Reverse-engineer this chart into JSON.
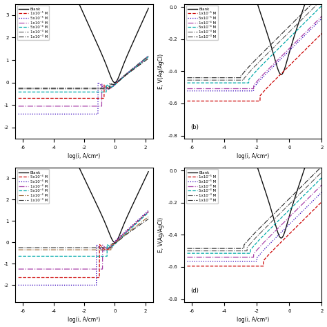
{
  "figsize": [
    4.74,
    4.74
  ],
  "dpi": 100,
  "panels": [
    {
      "idx": 0,
      "label": "",
      "ylabel": "",
      "xlabel": "log(i, A/cm²)",
      "xlim": [
        -6.5,
        2.5
      ],
      "ylim": null,
      "has_ylabel": false,
      "xticks": [
        -6,
        -4,
        -2,
        0,
        2
      ],
      "legend_loc": "upper left",
      "legend": [
        {
          "label": "Blank",
          "color": "#111111",
          "ls": "-",
          "lw": 1.0
        },
        {
          "label": "1x10⁻⁵ M",
          "color": "#cc0000",
          "ls": "--",
          "lw": 0.9
        },
        {
          "label": "5x10⁻⁵ M",
          "color": "#3300bb",
          "ls": ":",
          "lw": 0.9
        },
        {
          "label": "1x10⁻⁴ M",
          "color": "#aa44aa",
          "ls": "-.",
          "lw": 0.9
        },
        {
          "label": "5x10⁻⁴ M",
          "color": "#00aaaa",
          "ls": "--",
          "lw": 0.9
        },
        {
          "label": "1x10⁻³ M",
          "color": "#555555",
          "ls": "-.",
          "lw": 0.8
        },
        {
          "label": "1x10⁻³ M",
          "color": "#222222",
          "ls": "-.",
          "lw": 0.8
        }
      ]
    },
    {
      "idx": 1,
      "label": "(b)",
      "ylabel": "E, V(Ag/AgCl)",
      "xlabel": "log(i, A/cm²)",
      "xlim": [
        -6.5,
        2.0
      ],
      "ylim": [
        -0.82,
        0.02
      ],
      "has_ylabel": true,
      "xticks": [
        -6,
        -4,
        -2,
        0,
        2
      ],
      "yticks": [
        0.0,
        -0.2,
        -0.4,
        -0.6,
        -0.8
      ],
      "legend_loc": "upper left",
      "legend": [
        {
          "label": "Blank",
          "color": "#111111",
          "ls": "-",
          "lw": 1.0
        },
        {
          "label": "1x10⁻⁵ M",
          "color": "#cc0000",
          "ls": "--",
          "lw": 0.9
        },
        {
          "label": "5x10⁻⁵ M",
          "color": "#3300bb",
          "ls": ":",
          "lw": 0.9
        },
        {
          "label": "1x10⁻⁴ M",
          "color": "#aa44aa",
          "ls": "-.",
          "lw": 0.9
        },
        {
          "label": "5x10⁻⁴ M",
          "color": "#00aaaa",
          "ls": "--",
          "lw": 0.9
        },
        {
          "label": "1x10⁻³ M",
          "color": "#555555",
          "ls": "-.",
          "lw": 0.8
        },
        {
          "label": "1x10⁻³ M",
          "color": "#222222",
          "ls": "-.",
          "lw": 0.8
        }
      ]
    },
    {
      "idx": 2,
      "label": "",
      "ylabel": "",
      "xlabel": "log(i, A/cm²)",
      "xlim": [
        -6.5,
        2.5
      ],
      "ylim": null,
      "has_ylabel": false,
      "xticks": [
        -6,
        -4,
        -2,
        0,
        2
      ],
      "legend_loc": "upper left",
      "legend": [
        {
          "label": "Blank",
          "color": "#111111",
          "ls": "-",
          "lw": 1.0
        },
        {
          "label": "5x10⁻⁴ M",
          "color": "#cc0000",
          "ls": "--",
          "lw": 0.9
        },
        {
          "label": "5x10⁻⁴ M",
          "color": "#3300bb",
          "ls": ":",
          "lw": 0.9
        },
        {
          "label": "1x10⁻⁴ M",
          "color": "#aa44aa",
          "ls": "-.",
          "lw": 0.9
        },
        {
          "label": "5x10⁻⁴ M",
          "color": "#00aaaa",
          "ls": "--",
          "lw": 0.9
        },
        {
          "label": "1x10⁻⁴ M",
          "color": "#996633",
          "ls": "-.",
          "lw": 0.8
        },
        {
          "label": "1x10⁻³ M",
          "color": "#333333",
          "ls": "-.",
          "lw": 0.8
        }
      ]
    },
    {
      "idx": 3,
      "label": "(d)",
      "ylabel": "E, V(Ag/AgCl)",
      "xlabel": "log(i, A/cm²)",
      "xlim": [
        -6.5,
        2.0
      ],
      "ylim": [
        -0.82,
        0.02
      ],
      "has_ylabel": true,
      "xticks": [
        -6,
        -4,
        -2,
        0,
        2
      ],
      "yticks": [
        0.0,
        -0.2,
        -0.4,
        -0.6,
        -0.8
      ],
      "legend_loc": "upper left",
      "legend": [
        {
          "label": "Blank",
          "color": "#111111",
          "ls": "-",
          "lw": 1.0
        },
        {
          "label": "1x10⁻⁵ M",
          "color": "#cc0000",
          "ls": "--",
          "lw": 0.9
        },
        {
          "label": "5x10⁻⁵ M",
          "color": "#3300bb",
          "ls": ":",
          "lw": 0.9
        },
        {
          "label": "1x10⁻⁴ M",
          "color": "#aa44aa",
          "ls": "-.",
          "lw": 0.9
        },
        {
          "label": "5x10⁻⁴ M",
          "color": "#00aaaa",
          "ls": "--",
          "lw": 0.9
        },
        {
          "label": "1x10⁻³ M",
          "color": "#555555",
          "ls": "-.",
          "lw": 0.8
        },
        {
          "label": "1x10⁻³ M",
          "color": "#222222",
          "ls": "-.",
          "lw": 0.8
        }
      ]
    }
  ]
}
